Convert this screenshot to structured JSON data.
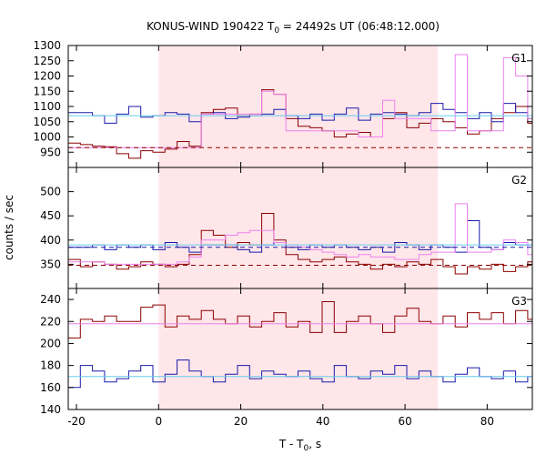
{
  "chart_data": {
    "type": "line",
    "title": {
      "prefix": "KONUS-WIND 190422 T",
      "sub": "0",
      "suffix": " = 24492s UT (06:48:12.000)"
    },
    "xlabel": {
      "main": "T - T",
      "sub": "0",
      "suffix": ", s"
    },
    "ylabel": "counts / sec",
    "xlim": [
      -22,
      91
    ],
    "xticks": [
      -20,
      0,
      20,
      40,
      60,
      80
    ],
    "shaded_interval": [
      0,
      68
    ],
    "colors": {
      "dark_red": "#8b0000",
      "blue": "#1a1aaa",
      "pink": "#ee82ee",
      "light_blue": "#66ccee",
      "shade": "#ffe6e9"
    },
    "panels": [
      {
        "label": "G1",
        "ylim": [
          900,
          1300
        ],
        "yticks": [
          900,
          950,
          1000,
          1050,
          1100,
          1150,
          1200,
          1250,
          1300
        ],
        "series": [
          {
            "color": "dark_red",
            "style": "step",
            "x0": -22,
            "dx": 2.944,
            "values": [
              980,
              975,
              970,
              968,
              945,
              930,
              955,
              950,
              960,
              985,
              970,
              1080,
              1090,
              1095,
              1070,
              1075,
              1155,
              1140,
              1060,
              1035,
              1030,
              1020,
              1000,
              1010,
              1015,
              1000,
              1060,
              1080,
              1030,
              1045,
              1060,
              1050,
              1030,
              1010,
              1020,
              1060,
              1080,
              1100,
              1045
            ]
          },
          {
            "color": "blue",
            "style": "step",
            "x0": -22,
            "dx": 2.944,
            "values": [
              1080,
              1080,
              1070,
              1045,
              1075,
              1100,
              1065,
              1070,
              1080,
              1075,
              1050,
              1075,
              1080,
              1060,
              1065,
              1070,
              1075,
              1090,
              1070,
              1060,
              1075,
              1055,
              1075,
              1095,
              1055,
              1075,
              1080,
              1075,
              1070,
              1080,
              1110,
              1090,
              1080,
              1060,
              1080,
              1050,
              1110,
              1080,
              1060
            ]
          },
          {
            "color": "pink",
            "style": "step",
            "x0": -22,
            "dx": 2.944,
            "values": [
              965,
              965,
              965,
              965,
              965,
              965,
              965,
              965,
              965,
              965,
              965,
              1075,
              1075,
              1075,
              1075,
              1075,
              1150,
              1140,
              1020,
              1020,
              1020,
              1020,
              1020,
              1020,
              1000,
              1000,
              1120,
              1060,
              1060,
              1060,
              1020,
              1020,
              1270,
              1020,
              1020,
              1020,
              1260,
              1200,
              1060
            ]
          },
          {
            "color": "light_blue",
            "style": "const",
            "value": 1070
          },
          {
            "color": "dark_red",
            "style": "dashed",
            "value": 965
          }
        ]
      },
      {
        "label": "G2",
        "ylim": [
          300,
          550
        ],
        "yticks": [
          300,
          350,
          400,
          450,
          500
        ],
        "series": [
          {
            "color": "dark_red",
            "style": "step",
            "x0": -22,
            "dx": 2.944,
            "values": [
              360,
              345,
              355,
              350,
              340,
              345,
              355,
              350,
              345,
              350,
              370,
              420,
              410,
              385,
              395,
              390,
              455,
              400,
              370,
              360,
              355,
              360,
              365,
              355,
              350,
              340,
              350,
              345,
              355,
              350,
              360,
              345,
              330,
              345,
              340,
              350,
              335,
              345,
              355
            ]
          },
          {
            "color": "blue",
            "style": "step",
            "x0": -22,
            "dx": 2.944,
            "values": [
              385,
              385,
              390,
              380,
              390,
              385,
              390,
              380,
              395,
              385,
              375,
              390,
              390,
              390,
              380,
              375,
              390,
              395,
              385,
              380,
              390,
              385,
              390,
              385,
              380,
              385,
              375,
              395,
              390,
              380,
              390,
              385,
              375,
              440,
              385,
              380,
              395,
              390,
              390
            ]
          },
          {
            "color": "pink",
            "style": "step",
            "x0": -22,
            "dx": 2.944,
            "values": [
              355,
              355,
              355,
              350,
              350,
              350,
              350,
              350,
              350,
              355,
              365,
              400,
              400,
              410,
              415,
              420,
              420,
              395,
              390,
              385,
              380,
              375,
              370,
              365,
              370,
              365,
              365,
              360,
              360,
              370,
              375,
              375,
              475,
              375,
              375,
              380,
              400,
              395,
              370
            ]
          },
          {
            "color": "light_blue",
            "style": "const",
            "value": 390
          },
          {
            "color": "blue",
            "style": "dashed",
            "value": 385
          },
          {
            "color": "dark_red",
            "style": "dashed",
            "value": 348
          }
        ]
      },
      {
        "label": "G3",
        "ylim": [
          140,
          250
        ],
        "yticks": [
          140,
          160,
          180,
          200,
          220,
          240
        ],
        "series": [
          {
            "color": "dark_red",
            "style": "step",
            "x0": -22,
            "dx": 2.944,
            "values": [
              205,
              222,
              220,
              225,
              220,
              220,
              233,
              235,
              215,
              225,
              222,
              230,
              222,
              218,
              225,
              215,
              220,
              228,
              215,
              220,
              210,
              238,
              210,
              220,
              225,
              218,
              210,
              225,
              232,
              220,
              218,
              225,
              215,
              228,
              222,
              228,
              218,
              230,
              222
            ]
          },
          {
            "color": "blue",
            "style": "step",
            "x0": -22,
            "dx": 2.944,
            "values": [
              160,
              180,
              175,
              165,
              168,
              175,
              180,
              165,
              172,
              185,
              175,
              170,
              165,
              172,
              180,
              168,
              175,
              172,
              170,
              175,
              168,
              165,
              180,
              170,
              168,
              175,
              172,
              180,
              168,
              175,
              170,
              165,
              172,
              178,
              170,
              168,
              175,
              165,
              170
            ]
          },
          {
            "color": "pink",
            "style": "const",
            "value": 218
          },
          {
            "color": "light_blue",
            "style": "const",
            "value": 170
          }
        ]
      }
    ]
  }
}
